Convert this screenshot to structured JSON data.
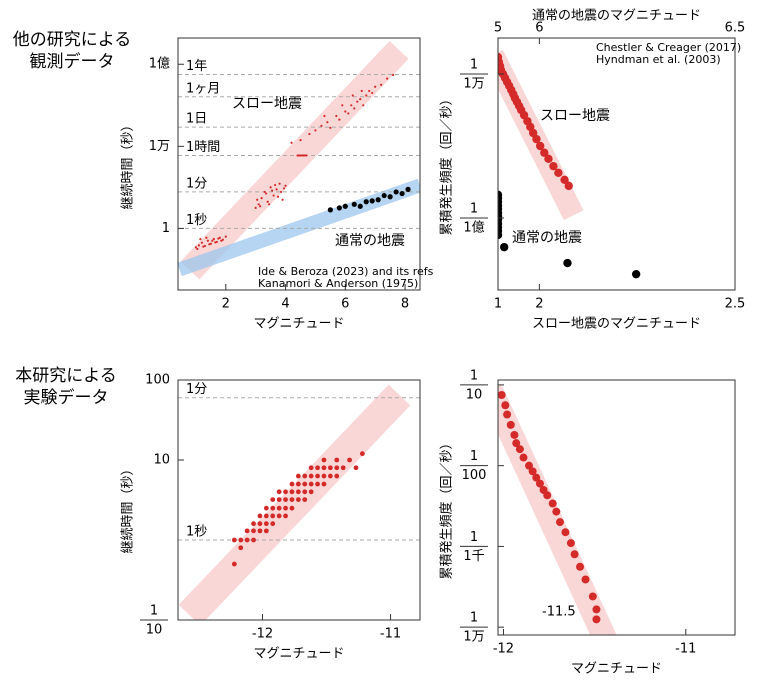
{
  "side_labels": [
    [
      "他の研究による",
      "観測データ"
    ],
    [
      "本研究による",
      "実験データ"
    ]
  ],
  "chart_data": [
    {
      "type": "scatter",
      "ylog": true,
      "xlabel": "マグニチュード",
      "ylabel": "継続時間（秒）",
      "xlim": [
        0.4,
        8.5
      ],
      "xticks": [
        2,
        4,
        6,
        8
      ],
      "ylim": [
        0.001,
        1900000000
      ],
      "yticks": [
        {
          "value": 1,
          "label": "1"
        },
        {
          "value": 10000,
          "label": "1万"
        },
        {
          "value": 100000000,
          "label": "1億"
        }
      ],
      "ref_lines": [
        {
          "value": 31536000,
          "label": "1年"
        },
        {
          "value": 2592000,
          "label": "1ヶ月"
        },
        {
          "value": 86400,
          "label": "1日"
        },
        {
          "value": 3600,
          "label": "1時間"
        },
        {
          "value": 60,
          "label": "1分"
        },
        {
          "value": 1,
          "label": "1秒"
        }
      ],
      "bands": [
        {
          "color": "#f8c9ca",
          "x": [
            0.8,
            7.8
          ],
          "y": [
            0.009,
            500000000
          ]
        },
        {
          "color": "#9cc7ee",
          "x": [
            0.45,
            8.5
          ],
          "y": [
            0.01,
            125
          ]
        }
      ],
      "series": [
        {
          "color": "#d42a2a",
          "x": [
            1.0,
            1.1,
            1.2,
            1.3,
            1.4,
            1.5,
            1.6,
            1.7,
            1.8,
            1.9,
            2.0,
            1.05,
            1.25,
            1.45,
            1.65,
            1.85,
            1.15,
            1.35,
            1.55,
            1.75,
            3.0,
            3.1,
            3.2,
            3.3,
            3.4,
            3.5,
            3.6,
            3.7,
            3.8,
            3.9,
            4.0,
            3.15,
            3.35,
            3.55,
            3.75,
            3.95,
            3.05,
            3.45,
            3.65,
            3.85,
            4.4,
            4.45,
            4.5,
            4.55,
            4.6,
            4.65,
            4.7,
            4.2,
            4.5,
            4.8,
            5.0,
            5.2,
            5.4,
            5.5,
            5.7,
            5.8,
            6.0,
            6.1,
            6.2,
            6.3,
            6.4,
            6.5,
            6.6,
            6.7,
            6.8,
            6.9,
            7.0,
            7.2,
            7.4,
            7.6,
            5.3,
            5.9,
            6.25,
            6.55
          ],
          "values": [
            0.12,
            0.15,
            0.2,
            0.14,
            0.25,
            0.18,
            0.3,
            0.22,
            0.35,
            0.28,
            0.4,
            0.1,
            0.13,
            0.17,
            0.21,
            0.25,
            0.3,
            0.35,
            0.25,
            0.32,
            10,
            15,
            30,
            60,
            20,
            100,
            40,
            80,
            150,
            25,
            120,
            12,
            50,
            70,
            35,
            90,
            25,
            15,
            130,
            60,
            3600,
            3600,
            3600,
            3600,
            3600,
            3600,
            3600,
            15000,
            20000,
            40000,
            60000,
            100000,
            150000,
            80000,
            300000,
            200000,
            500000,
            400000,
            1000000,
            700000,
            1500000,
            2000000,
            1000000,
            3000000,
            5000000,
            4000000,
            8000000,
            10000000,
            20000000,
            30000000,
            300000,
            1000000,
            3000000,
            5000000
          ]
        },
        {
          "color": "#000000",
          "x": [
            5.5,
            5.8,
            6.0,
            6.3,
            6.5,
            6.7,
            6.9,
            7.1,
            7.3,
            7.5,
            7.7,
            7.9,
            8.1
          ],
          "values": [
            8,
            10,
            12,
            15,
            12,
            20,
            22,
            25,
            40,
            35,
            60,
            50,
            80
          ]
        }
      ],
      "annotations": [
        {
          "text": "スロー地震",
          "color": "#d42a2a"
        },
        {
          "text": "通常の地震",
          "color": "#2d8ad6"
        },
        {
          "text": "Ide & Beroza (2023) and its refs",
          "color": "#000000"
        },
        {
          "text": "Kanamori & Anderson (1975)",
          "color": "#000000"
        }
      ]
    },
    {
      "type": "scatter",
      "ylog": true,
      "xlabel": "スロー地震のマグニチュード",
      "x2label": "通常の地震のマグニチュード",
      "ylabel": "累積発生頻度（回／秒）",
      "xlim": [
        1,
        6.73
      ],
      "xticks": [
        1,
        2
      ],
      "x_end_label": "2.5",
      "x2lim": [
        5,
        10.73
      ],
      "x2ticks": [
        5,
        6
      ],
      "x2_end_label": "6.5",
      "ylim": [
        1e-10,
        0.001
      ],
      "yticks": [
        {
          "value": 0.0001,
          "label": [
            "1",
            "1万"
          ]
        },
        {
          "value": 1e-08,
          "label": [
            "1",
            "1億"
          ]
        }
      ],
      "bands": [
        {
          "color": "#f8c9ca",
          "x": [
            0.88,
            2.83
          ],
          "y": [
            0.00034,
            1.2e-08
          ]
        }
      ],
      "series": [
        {
          "color": "#d42a2a",
          "x": [
            1.0,
            1.02,
            1.05,
            1.07,
            1.12,
            1.17,
            1.22,
            1.27,
            1.32,
            1.37,
            1.41,
            1.46,
            1.51,
            1.56,
            1.63,
            1.71,
            1.78,
            1.85,
            1.93,
            2.02,
            2.12,
            2.22,
            2.34,
            2.46,
            2.61,
            2.71
          ],
          "values": [
            0.000295,
            0.000214,
            0.000166,
            0.000129,
            0.0001,
            7.8e-05,
            6e-05,
            4.7e-05,
            3.6e-05,
            2.75e-05,
            2.14e-05,
            1.66e-05,
            1.29e-05,
            1e-05,
            7.2e-06,
            4.9e-06,
            3.4e-06,
            2.3e-06,
            1.55e-06,
            1e-06,
            6.5e-07,
            4.4e-07,
            2.75e-07,
            1.8e-07,
            1.15e-07,
            7.8e-08
          ]
        },
        {
          "color": "#000000",
          "axis": "x2",
          "x": [
            5,
            5,
            5,
            5,
            5,
            5,
            5,
            5,
            5,
            5,
            5,
            5,
            5.15,
            6.68,
            8.34
          ],
          "values": [
            4.4e-08,
            3.5e-08,
            2.8e-08,
            2.2e-08,
            1.8e-08,
            1.4e-08,
            1.1e-08,
            9e-09,
            7e-09,
            5.5e-09,
            4.4e-09,
            3.4e-09,
            1.55e-09,
            5.6e-10,
            2.75e-10
          ]
        }
      ],
      "annotations": [
        {
          "text": "Chestler & Creager (2017)",
          "color": "#000000"
        },
        {
          "text": "Hyndman et al. (2003)",
          "color": "#000000"
        },
        {
          "text": "スロー地震",
          "color": "#d42a2a"
        },
        {
          "text": "通常の地震",
          "color": "#2d8ad6"
        }
      ]
    },
    {
      "type": "scatter",
      "ylog": true,
      "xlabel": "マグニチュード",
      "ylabel": "継続時間（秒）",
      "xlim": [
        -12.66,
        -10.77
      ],
      "xticks": [
        -12,
        -11
      ],
      "ylim": [
        0.1,
        100
      ],
      "yticks": [
        {
          "value": 100,
          "label": "100"
        },
        {
          "value": 10,
          "label": "10"
        },
        {
          "value": 0.1,
          "label": [
            "1",
            "10"
          ]
        }
      ],
      "ref_lines": [
        {
          "value": 60,
          "label": "1分"
        },
        {
          "value": 1,
          "label": "1秒"
        }
      ],
      "bands": [
        {
          "color": "#f8c9ca",
          "x": [
            -12.57,
            -10.93
          ],
          "y": [
            0.115,
            65
          ]
        }
      ],
      "series": [
        {
          "color": "#d42a2a",
          "x": [
            -12.22,
            -12.22,
            -12.17,
            -12.17,
            -12.12,
            -12.12,
            -12.07,
            -12.07,
            -12.07,
            -12.02,
            -12.02,
            -12.02,
            -11.97,
            -11.97,
            -11.97,
            -11.97,
            -11.92,
            -11.92,
            -11.92,
            -11.92,
            -11.87,
            -11.87,
            -11.87,
            -11.87,
            -11.82,
            -11.82,
            -11.82,
            -11.82,
            -11.77,
            -11.77,
            -11.77,
            -11.77,
            -11.72,
            -11.72,
            -11.72,
            -11.72,
            -11.67,
            -11.67,
            -11.67,
            -11.67,
            -11.62,
            -11.62,
            -11.62,
            -11.62,
            -11.57,
            -11.57,
            -11.57,
            -11.52,
            -11.52,
            -11.52,
            -11.52,
            -11.47,
            -11.47,
            -11.42,
            -11.42,
            -11.42,
            -11.37,
            -11.32,
            -11.27,
            -11.22
          ],
          "values": [
            0.5,
            1.0,
            0.8,
            1.0,
            1.0,
            1.3,
            1.0,
            1.3,
            1.6,
            1.3,
            1.6,
            2.0,
            1.3,
            1.6,
            2.0,
            2.5,
            1.6,
            2.0,
            2.5,
            3.2,
            2.0,
            2.5,
            3.2,
            4.0,
            2.0,
            2.5,
            3.2,
            4.0,
            2.5,
            3.2,
            4.0,
            5.0,
            3.2,
            4.0,
            5.0,
            6.3,
            3.2,
            4.0,
            5.0,
            6.3,
            4.0,
            5.0,
            6.3,
            8.0,
            5.0,
            6.3,
            8.0,
            5.0,
            6.3,
            8.0,
            10,
            6.3,
            8.0,
            6.3,
            8.0,
            10,
            8.0,
            10,
            8.0,
            12
          ]
        }
      ],
      "annotations": []
    },
    {
      "type": "scatter",
      "ylog": true,
      "xlabel": "マグニチュード",
      "ylabel": "累積発生頻度（回／秒）",
      "xlim": [
        -12.03,
        -10.73
      ],
      "xticks": [
        -12,
        -11
      ],
      "ylim": [
        8e-05,
        0.115
      ],
      "yticks": [
        {
          "value": 0.1,
          "label": [
            "1",
            "10"
          ]
        },
        {
          "value": 0.01,
          "label": [
            "1",
            "100"
          ]
        },
        {
          "value": 0.001,
          "label": [
            "1",
            "1千"
          ]
        },
        {
          "value": 0.0001,
          "label": [
            "1",
            "1万"
          ]
        }
      ],
      "bands": [
        {
          "color": "#f8c9ca",
          "x": [
            -12.07,
            -11.44
          ],
          "y": [
            0.087,
            7e-05
          ]
        }
      ],
      "series": [
        {
          "color": "#d42a2a",
          "x": [
            -12.01,
            -11.99,
            -11.98,
            -11.96,
            -11.94,
            -11.93,
            -11.91,
            -11.89,
            -11.86,
            -11.84,
            -11.82,
            -11.8,
            -11.78,
            -11.76,
            -11.73,
            -11.71,
            -11.69,
            -11.66,
            -11.63,
            -11.61,
            -11.58,
            -11.55,
            -11.51,
            -11.49,
            -11.49
          ],
          "values": [
            0.075,
            0.056,
            0.043,
            0.032,
            0.024,
            0.019,
            0.016,
            0.0126,
            0.01,
            0.0085,
            0.0071,
            0.006,
            0.005,
            0.0043,
            0.0034,
            0.0027,
            0.002,
            0.0015,
            0.0011,
            0.0008,
            0.00056,
            0.00039,
            0.00024,
            0.000166,
            0.000125
          ]
        }
      ],
      "annotations": [
        {
          "text": "-11.5",
          "color": "#000000"
        }
      ]
    }
  ]
}
